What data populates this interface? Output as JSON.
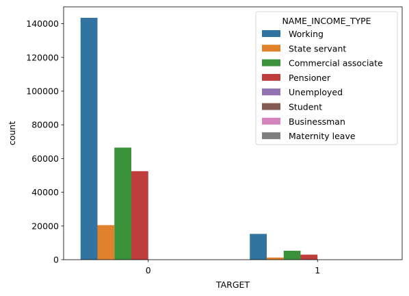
{
  "chart_data": {
    "type": "bar",
    "title": "",
    "xlabel": "TARGET",
    "ylabel": "count",
    "categories": [
      "0",
      "1"
    ],
    "ylim": [
      0,
      150000
    ],
    "yticks": [
      0,
      20000,
      40000,
      60000,
      80000,
      100000,
      120000,
      140000
    ],
    "grid": false,
    "legend": {
      "title": "NAME_INCOME_TYPE",
      "placement": "top-right"
    },
    "series": [
      {
        "name": "Working",
        "color": "#3274a1",
        "values": [
          143500,
          15300
        ]
      },
      {
        "name": "State servant",
        "color": "#e1812c",
        "values": [
          20500,
          1300
        ]
      },
      {
        "name": "Commercial associate",
        "color": "#3a923a",
        "values": [
          66500,
          5300
        ]
      },
      {
        "name": "Pensioner",
        "color": "#c03d3e",
        "values": [
          52500,
          3000
        ]
      },
      {
        "name": "Unemployed",
        "color": "#9372b2",
        "values": [
          17,
          5
        ]
      },
      {
        "name": "Student",
        "color": "#845b53",
        "values": [
          18,
          0
        ]
      },
      {
        "name": "Businessman",
        "color": "#d684bd",
        "values": [
          10,
          0
        ]
      },
      {
        "name": "Maternity leave",
        "color": "#7f7f7f",
        "values": [
          3,
          2
        ]
      }
    ]
  }
}
